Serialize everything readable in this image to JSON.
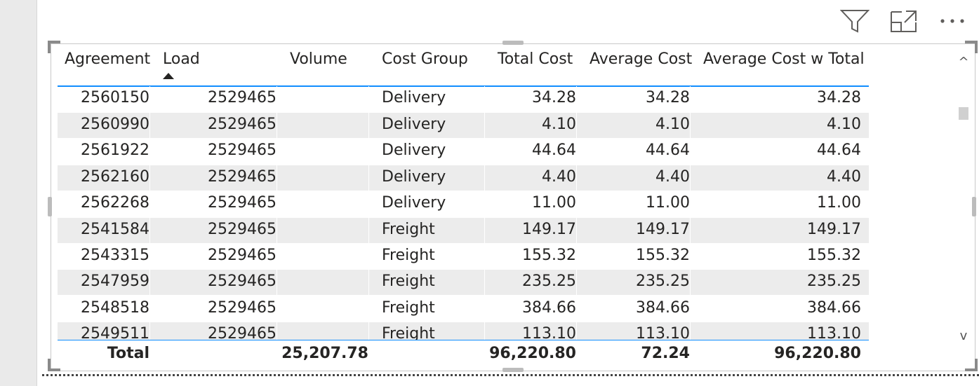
{
  "table": {
    "columns": [
      {
        "label": "Agreement",
        "align": "right"
      },
      {
        "label": "Load",
        "align": "right",
        "sorted": "ascending"
      },
      {
        "label": "Volume",
        "align": "right"
      },
      {
        "label": "Cost Group",
        "align": "left"
      },
      {
        "label": "Total Cost",
        "align": "right"
      },
      {
        "label": "Average Cost",
        "align": "right"
      },
      {
        "label": "Average Cost w Total",
        "align": "right"
      }
    ],
    "rows": [
      [
        "2560150",
        "2529465",
        "",
        "Delivery",
        "34.28",
        "34.28",
        "34.28"
      ],
      [
        "2560990",
        "2529465",
        "",
        "Delivery",
        "4.10",
        "4.10",
        "4.10"
      ],
      [
        "2561922",
        "2529465",
        "",
        "Delivery",
        "44.64",
        "44.64",
        "44.64"
      ],
      [
        "2562160",
        "2529465",
        "",
        "Delivery",
        "4.40",
        "4.40",
        "4.40"
      ],
      [
        "2562268",
        "2529465",
        "",
        "Delivery",
        "11.00",
        "11.00",
        "11.00"
      ],
      [
        "2541584",
        "2529465",
        "",
        "Freight",
        "149.17",
        "149.17",
        "149.17"
      ],
      [
        "2543315",
        "2529465",
        "",
        "Freight",
        "155.32",
        "155.32",
        "155.32"
      ],
      [
        "2547959",
        "2529465",
        "",
        "Freight",
        "235.25",
        "235.25",
        "235.25"
      ],
      [
        "2548518",
        "2529465",
        "",
        "Freight",
        "384.66",
        "384.66",
        "384.66"
      ],
      [
        "2549511",
        "2529465",
        "",
        "Freight",
        "113.10",
        "113.10",
        "113.10"
      ]
    ],
    "total": [
      "Total",
      "",
      "25,207.78",
      "",
      "96,220.80",
      "72.24",
      "96,220.80"
    ]
  },
  "icons": {
    "filter": "filter-icon",
    "focus_mode": "focus-mode-icon",
    "more_options": "more-options-icon"
  },
  "scrollbar": {
    "up": "^",
    "down": "v"
  },
  "colors": {
    "accent": "#118dff",
    "alt_row": "#ececec",
    "text": "#252423"
  }
}
